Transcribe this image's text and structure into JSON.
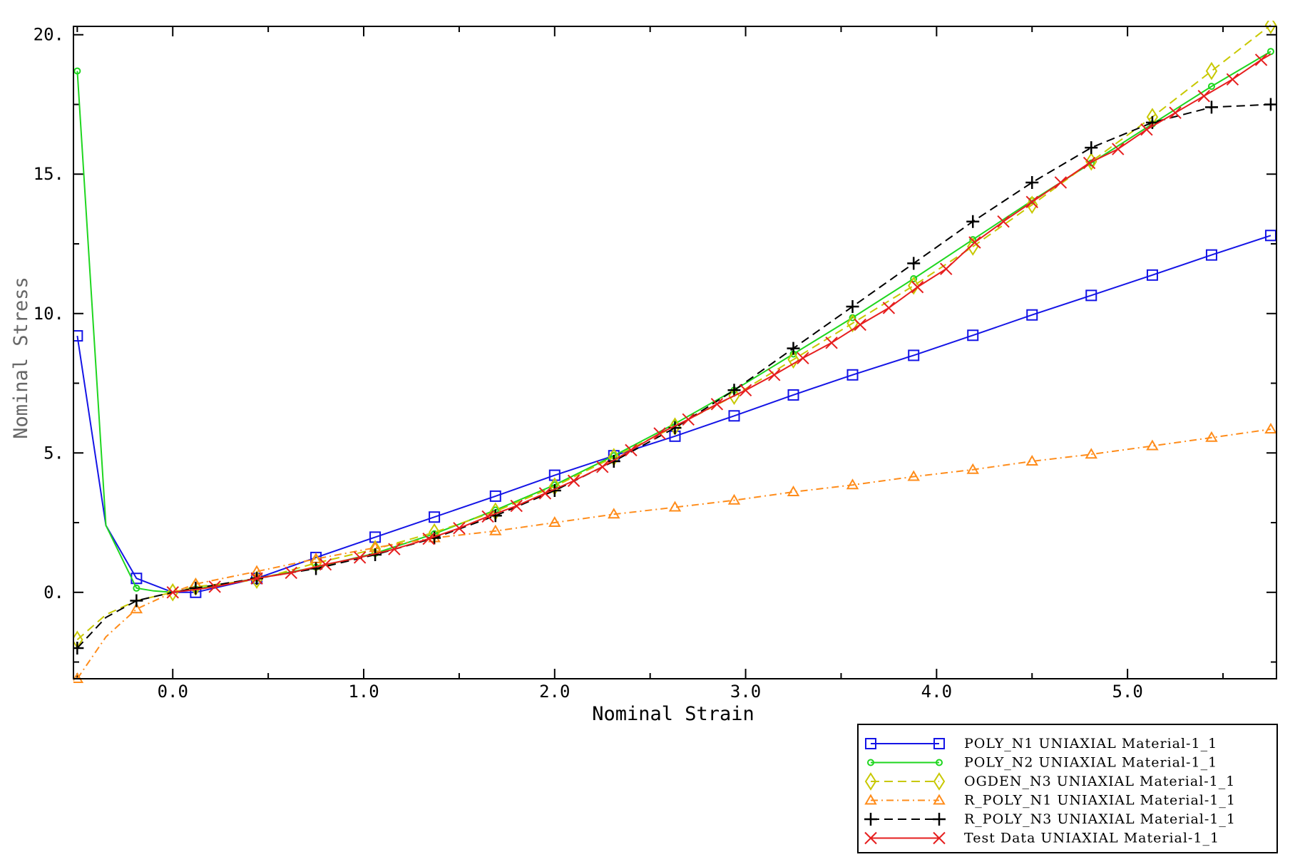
{
  "chart_data": {
    "type": "line",
    "title": "",
    "xlabel": "Nominal Strain",
    "ylabel": "Nominal Stress",
    "xlim": [
      -0.52,
      5.78
    ],
    "ylim": [
      -3.1,
      20.3
    ],
    "x_ticks": [
      0.0,
      1.0,
      2.0,
      3.0,
      4.0,
      5.0
    ],
    "x_tick_labels": [
      "0.0",
      "1.0",
      "2.0",
      "3.0",
      "4.0",
      "5.0"
    ],
    "y_ticks": [
      0,
      5,
      10,
      15,
      20
    ],
    "y_tick_labels": [
      "0.",
      "5.",
      "10.",
      "15.",
      "20."
    ],
    "grid": false,
    "legend_position": "bottom-right, below plot",
    "series": [
      {
        "name": "POLY_N1 UNIAXIAL Material-1_1",
        "color": "#1414e6",
        "dash": "",
        "marker": "square",
        "points": [
          [
            -0.5,
            9.2
          ],
          [
            -0.35,
            2.4
          ],
          [
            -0.19,
            0.5
          ],
          [
            0.0,
            0.0
          ],
          [
            0.12,
            0.0
          ],
          [
            0.44,
            0.5
          ],
          [
            0.75,
            1.25
          ],
          [
            1.06,
            1.98
          ],
          [
            1.37,
            2.7
          ],
          [
            1.69,
            3.45
          ],
          [
            2.0,
            4.2
          ],
          [
            2.31,
            4.9
          ],
          [
            2.63,
            5.6
          ],
          [
            2.94,
            6.33
          ],
          [
            3.25,
            7.08
          ],
          [
            3.56,
            7.8
          ],
          [
            3.88,
            8.5
          ],
          [
            4.19,
            9.22
          ],
          [
            4.5,
            9.95
          ],
          [
            4.81,
            10.65
          ],
          [
            5.13,
            11.38
          ],
          [
            5.44,
            12.1
          ],
          [
            5.75,
            12.8
          ]
        ],
        "marker_points": [
          [
            -0.5,
            9.2
          ],
          [
            -0.19,
            0.5
          ],
          [
            0.12,
            0.0
          ],
          [
            0.44,
            0.5
          ],
          [
            0.75,
            1.25
          ],
          [
            1.06,
            1.98
          ],
          [
            1.37,
            2.7
          ],
          [
            1.69,
            3.45
          ],
          [
            2.0,
            4.2
          ],
          [
            2.31,
            4.9
          ],
          [
            2.63,
            5.6
          ],
          [
            2.94,
            6.33
          ],
          [
            3.25,
            7.08
          ],
          [
            3.56,
            7.8
          ],
          [
            3.88,
            8.5
          ],
          [
            4.19,
            9.22
          ],
          [
            4.5,
            9.95
          ],
          [
            4.81,
            10.65
          ],
          [
            5.13,
            11.38
          ],
          [
            5.44,
            12.1
          ],
          [
            5.75,
            12.8
          ]
        ]
      },
      {
        "name": "POLY_N2 UNIAXIAL Material-1_1",
        "color": "#1fd61f",
        "dash": "",
        "marker": "circle",
        "points": [
          [
            -0.5,
            18.7
          ],
          [
            -0.35,
            2.4
          ],
          [
            -0.19,
            0.15
          ],
          [
            -0.1,
            0.05
          ],
          [
            0.0,
            0.0
          ],
          [
            0.12,
            0.12
          ],
          [
            0.44,
            0.5
          ],
          [
            0.75,
            0.9
          ],
          [
            1.06,
            1.4
          ],
          [
            1.37,
            2.1
          ],
          [
            1.69,
            2.95
          ],
          [
            2.0,
            3.85
          ],
          [
            2.31,
            4.9
          ],
          [
            2.63,
            6.05
          ],
          [
            2.94,
            7.25
          ],
          [
            3.25,
            8.55
          ],
          [
            3.56,
            9.85
          ],
          [
            3.88,
            11.25
          ],
          [
            4.19,
            12.65
          ],
          [
            4.5,
            14.05
          ],
          [
            4.81,
            15.4
          ],
          [
            5.13,
            16.8
          ],
          [
            5.44,
            18.15
          ],
          [
            5.75,
            19.4
          ]
        ],
        "marker_points": [
          [
            -0.5,
            18.7
          ],
          [
            -0.19,
            0.15
          ],
          [
            0.12,
            0.12
          ],
          [
            0.44,
            0.5
          ],
          [
            0.75,
            0.9
          ],
          [
            1.06,
            1.4
          ],
          [
            1.37,
            2.1
          ],
          [
            1.69,
            2.95
          ],
          [
            2.0,
            3.85
          ],
          [
            2.31,
            4.9
          ],
          [
            2.63,
            6.05
          ],
          [
            2.94,
            7.25
          ],
          [
            3.25,
            8.55
          ],
          [
            3.56,
            9.85
          ],
          [
            3.88,
            11.25
          ],
          [
            4.19,
            12.65
          ],
          [
            4.5,
            14.05
          ],
          [
            4.81,
            15.4
          ],
          [
            5.13,
            16.8
          ],
          [
            5.44,
            18.15
          ],
          [
            5.75,
            19.4
          ]
        ]
      },
      {
        "name": "OGDEN_N3 UNIAXIAL Material-1_1",
        "color": "#c8c800",
        "dash": "12 7",
        "marker": "diamond",
        "points": [
          [
            -0.5,
            -1.7
          ],
          [
            -0.35,
            -0.8
          ],
          [
            -0.19,
            -0.3
          ],
          [
            0.0,
            0.0
          ],
          [
            0.12,
            0.2
          ],
          [
            0.44,
            0.45
          ],
          [
            0.75,
            1.05
          ],
          [
            1.06,
            1.55
          ],
          [
            1.37,
            2.15
          ],
          [
            1.69,
            2.9
          ],
          [
            2.0,
            3.8
          ],
          [
            2.31,
            4.85
          ],
          [
            2.63,
            5.95
          ],
          [
            2.94,
            7.05
          ],
          [
            3.25,
            8.35
          ],
          [
            3.56,
            9.65
          ],
          [
            3.88,
            11.0
          ],
          [
            4.19,
            12.4
          ],
          [
            4.5,
            13.9
          ],
          [
            4.81,
            15.45
          ],
          [
            5.13,
            17.05
          ],
          [
            5.44,
            18.7
          ],
          [
            5.75,
            20.35
          ]
        ],
        "marker_points": [
          [
            -0.5,
            -1.7
          ],
          [
            0.0,
            0.0
          ],
          [
            0.12,
            0.2
          ],
          [
            0.44,
            0.45
          ],
          [
            0.75,
            1.05
          ],
          [
            1.06,
            1.55
          ],
          [
            1.37,
            2.15
          ],
          [
            1.69,
            2.9
          ],
          [
            2.0,
            3.8
          ],
          [
            2.31,
            4.85
          ],
          [
            2.63,
            5.95
          ],
          [
            2.94,
            7.05
          ],
          [
            3.25,
            8.35
          ],
          [
            3.56,
            9.65
          ],
          [
            3.88,
            11.0
          ],
          [
            4.19,
            12.4
          ],
          [
            4.5,
            13.9
          ],
          [
            4.81,
            15.45
          ],
          [
            5.13,
            17.05
          ],
          [
            5.44,
            18.7
          ],
          [
            5.75,
            20.35
          ]
        ]
      },
      {
        "name": "R_POLY_N1 UNIAXIAL Material-1_1",
        "color": "#ff8c1a",
        "dash": "10 5 2 5",
        "marker": "triangle",
        "points": [
          [
            -0.5,
            -3.1
          ],
          [
            -0.35,
            -1.6
          ],
          [
            -0.19,
            -0.6
          ],
          [
            0.0,
            0.0
          ],
          [
            0.12,
            0.3
          ],
          [
            0.44,
            0.75
          ],
          [
            0.75,
            1.2
          ],
          [
            1.06,
            1.6
          ],
          [
            1.37,
            1.95
          ],
          [
            1.69,
            2.2
          ],
          [
            2.0,
            2.5
          ],
          [
            2.31,
            2.8
          ],
          [
            2.63,
            3.05
          ],
          [
            2.94,
            3.3
          ],
          [
            3.25,
            3.6
          ],
          [
            3.56,
            3.85
          ],
          [
            3.88,
            4.15
          ],
          [
            4.19,
            4.4
          ],
          [
            4.5,
            4.7
          ],
          [
            4.81,
            4.95
          ],
          [
            5.13,
            5.25
          ],
          [
            5.44,
            5.55
          ],
          [
            5.75,
            5.85
          ]
        ],
        "marker_points": [
          [
            -0.5,
            -3.1
          ],
          [
            -0.19,
            -0.6
          ],
          [
            0.12,
            0.3
          ],
          [
            0.44,
            0.75
          ],
          [
            0.75,
            1.2
          ],
          [
            1.06,
            1.6
          ],
          [
            1.37,
            1.95
          ],
          [
            1.69,
            2.2
          ],
          [
            2.0,
            2.5
          ],
          [
            2.31,
            2.8
          ],
          [
            2.63,
            3.05
          ],
          [
            2.94,
            3.3
          ],
          [
            3.25,
            3.6
          ],
          [
            3.56,
            3.85
          ],
          [
            3.88,
            4.15
          ],
          [
            4.19,
            4.4
          ],
          [
            4.5,
            4.7
          ],
          [
            4.81,
            4.95
          ],
          [
            5.13,
            5.25
          ],
          [
            5.44,
            5.55
          ],
          [
            5.75,
            5.85
          ]
        ]
      },
      {
        "name": "R_POLY_N3 UNIAXIAL Material-1_1",
        "color": "#000000",
        "dash": "12 7",
        "marker": "plus",
        "points": [
          [
            -0.5,
            -2.0
          ],
          [
            -0.35,
            -0.9
          ],
          [
            -0.19,
            -0.3
          ],
          [
            0.0,
            0.0
          ],
          [
            0.12,
            0.15
          ],
          [
            0.44,
            0.5
          ],
          [
            0.75,
            0.85
          ],
          [
            1.06,
            1.35
          ],
          [
            1.37,
            1.95
          ],
          [
            1.69,
            2.75
          ],
          [
            2.0,
            3.65
          ],
          [
            2.31,
            4.7
          ],
          [
            2.63,
            5.9
          ],
          [
            2.94,
            7.25
          ],
          [
            3.25,
            8.75
          ],
          [
            3.56,
            10.25
          ],
          [
            3.88,
            11.8
          ],
          [
            4.19,
            13.3
          ],
          [
            4.5,
            14.7
          ],
          [
            4.81,
            15.95
          ],
          [
            5.13,
            16.85
          ],
          [
            5.44,
            17.4
          ],
          [
            5.75,
            17.5
          ]
        ],
        "marker_points": [
          [
            -0.5,
            -2.0
          ],
          [
            -0.19,
            -0.3
          ],
          [
            0.12,
            0.15
          ],
          [
            0.44,
            0.5
          ],
          [
            0.75,
            0.85
          ],
          [
            1.06,
            1.35
          ],
          [
            1.37,
            1.95
          ],
          [
            1.69,
            2.75
          ],
          [
            2.0,
            3.65
          ],
          [
            2.31,
            4.7
          ],
          [
            2.63,
            5.9
          ],
          [
            2.94,
            7.25
          ],
          [
            3.25,
            8.75
          ],
          [
            3.56,
            10.25
          ],
          [
            3.88,
            11.8
          ],
          [
            4.19,
            13.3
          ],
          [
            4.5,
            14.7
          ],
          [
            4.81,
            15.95
          ],
          [
            5.13,
            16.85
          ],
          [
            5.44,
            17.4
          ],
          [
            5.75,
            17.5
          ]
        ]
      },
      {
        "name": "Test Data UNIAXIAL Material-1_1",
        "color": "#e61e1e",
        "dash": "",
        "marker": "x",
        "points": [
          [
            0.0,
            0.0
          ],
          [
            0.12,
            0.1
          ],
          [
            0.22,
            0.2
          ],
          [
            0.44,
            0.5
          ],
          [
            0.62,
            0.7
          ],
          [
            0.8,
            1.0
          ],
          [
            0.98,
            1.25
          ],
          [
            1.16,
            1.55
          ],
          [
            1.34,
            1.92
          ],
          [
            1.5,
            2.3
          ],
          [
            1.65,
            2.72
          ],
          [
            1.8,
            3.1
          ],
          [
            1.95,
            3.55
          ],
          [
            2.1,
            4.0
          ],
          [
            2.25,
            4.5
          ],
          [
            2.4,
            5.1
          ],
          [
            2.55,
            5.7
          ],
          [
            2.7,
            6.2
          ],
          [
            2.85,
            6.75
          ],
          [
            3.0,
            7.25
          ],
          [
            3.15,
            7.8
          ],
          [
            3.3,
            8.4
          ],
          [
            3.45,
            8.95
          ],
          [
            3.6,
            9.6
          ],
          [
            3.75,
            10.2
          ],
          [
            3.9,
            10.95
          ],
          [
            4.05,
            11.6
          ],
          [
            4.2,
            12.55
          ],
          [
            4.35,
            13.3
          ],
          [
            4.5,
            14.0
          ],
          [
            4.65,
            14.7
          ],
          [
            4.8,
            15.4
          ],
          [
            4.95,
            15.9
          ],
          [
            5.1,
            16.6
          ],
          [
            5.25,
            17.2
          ],
          [
            5.4,
            17.8
          ],
          [
            5.55,
            18.4
          ],
          [
            5.7,
            19.1
          ],
          [
            5.75,
            19.3
          ]
        ],
        "marker_points": [
          [
            0.0,
            0.0
          ],
          [
            0.22,
            0.2
          ],
          [
            0.44,
            0.5
          ],
          [
            0.62,
            0.7
          ],
          [
            0.8,
            1.0
          ],
          [
            0.98,
            1.25
          ],
          [
            1.16,
            1.55
          ],
          [
            1.34,
            1.92
          ],
          [
            1.5,
            2.3
          ],
          [
            1.65,
            2.72
          ],
          [
            1.8,
            3.1
          ],
          [
            1.95,
            3.55
          ],
          [
            2.1,
            4.0
          ],
          [
            2.25,
            4.5
          ],
          [
            2.4,
            5.1
          ],
          [
            2.55,
            5.7
          ],
          [
            2.7,
            6.2
          ],
          [
            2.85,
            6.75
          ],
          [
            3.0,
            7.25
          ],
          [
            3.15,
            7.8
          ],
          [
            3.3,
            8.4
          ],
          [
            3.45,
            8.95
          ],
          [
            3.6,
            9.6
          ],
          [
            3.75,
            10.2
          ],
          [
            3.9,
            10.95
          ],
          [
            4.05,
            11.6
          ],
          [
            4.2,
            12.55
          ],
          [
            4.35,
            13.3
          ],
          [
            4.5,
            14.0
          ],
          [
            4.65,
            14.7
          ],
          [
            4.8,
            15.4
          ],
          [
            4.95,
            15.9
          ],
          [
            5.1,
            16.6
          ],
          [
            5.25,
            17.2
          ],
          [
            5.4,
            17.8
          ],
          [
            5.55,
            18.4
          ],
          [
            5.7,
            19.1
          ]
        ]
      }
    ]
  }
}
